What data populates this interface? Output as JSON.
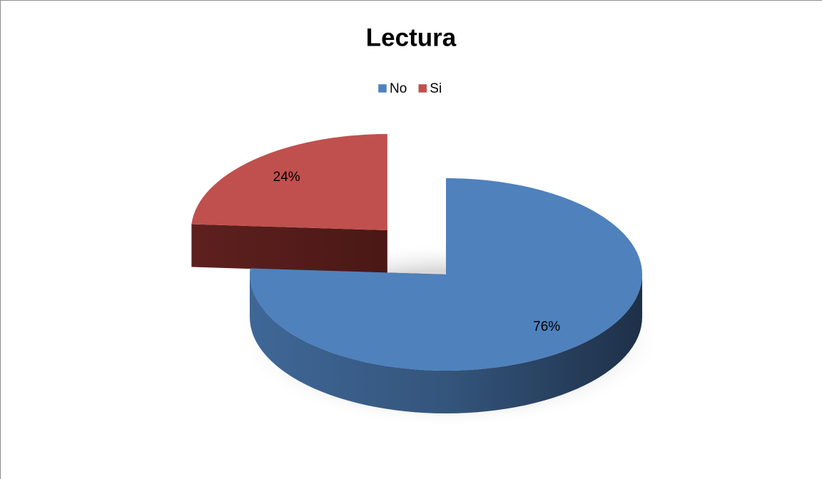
{
  "chart_data": {
    "type": "pie",
    "title": "Lectura",
    "categories": [
      "No",
      "Si"
    ],
    "values": [
      76,
      24
    ],
    "value_labels": [
      "76%",
      "24%"
    ],
    "colors": [
      "#4f81bd",
      "#c0504d"
    ],
    "legend": "top"
  }
}
